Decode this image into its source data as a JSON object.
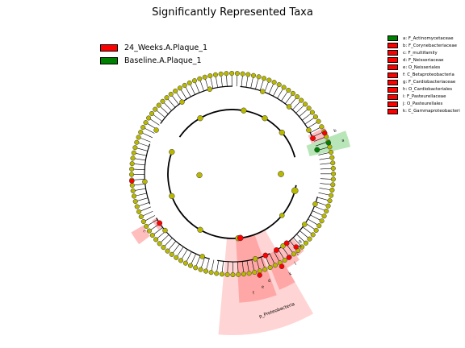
{
  "title": "Significantly Represented Taxa",
  "colors": {
    "enriched": "#ff0000",
    "baseline": "#008000",
    "neutral_node": "#b8b800",
    "red_shade": "#ff6f6f",
    "green_shade": "#7fd27f"
  },
  "groups": [
    {
      "name": "24_Weeks.A.Plaque_1",
      "color": "#ff0000"
    },
    {
      "name": "Baseline.A.Plaque_1",
      "color": "#008000"
    }
  ],
  "taxa_legend": [
    {
      "label": "a: F_Actinomycetaceae",
      "color": "#008000"
    },
    {
      "label": "b: F_Corynebacteriaceae",
      "color": "#ff0000"
    },
    {
      "label": "c: F_multifamily",
      "color": "#ff0000"
    },
    {
      "label": "d: F_Neisseriaceae",
      "color": "#ff0000"
    },
    {
      "label": "e: O_Neisseriales",
      "color": "#ff0000"
    },
    {
      "label": "f: C_Betaproteobacteria",
      "color": "#ff0000"
    },
    {
      "label": "g: F_Cardiobacteriaceae",
      "color": "#ff0000"
    },
    {
      "label": "h: O_Cardiobacteriales",
      "color": "#ff0000"
    },
    {
      "label": "i: F_Pasteurellaceae",
      "color": "#ff0000"
    },
    {
      "label": "j: O_Pasteurellales",
      "color": "#ff0000"
    },
    {
      "label": "k: C_Gammaproteobacteri",
      "color": "#ff0000"
    }
  ],
  "shade_labels": {
    "proteobacteria": "p_Proteobacteria",
    "f": "f",
    "e": "e",
    "d": "d",
    "k": "k",
    "j": "j",
    "i": "i",
    "h": "h",
    "g": "g",
    "c": "c",
    "a": "a",
    "b": "b"
  }
}
